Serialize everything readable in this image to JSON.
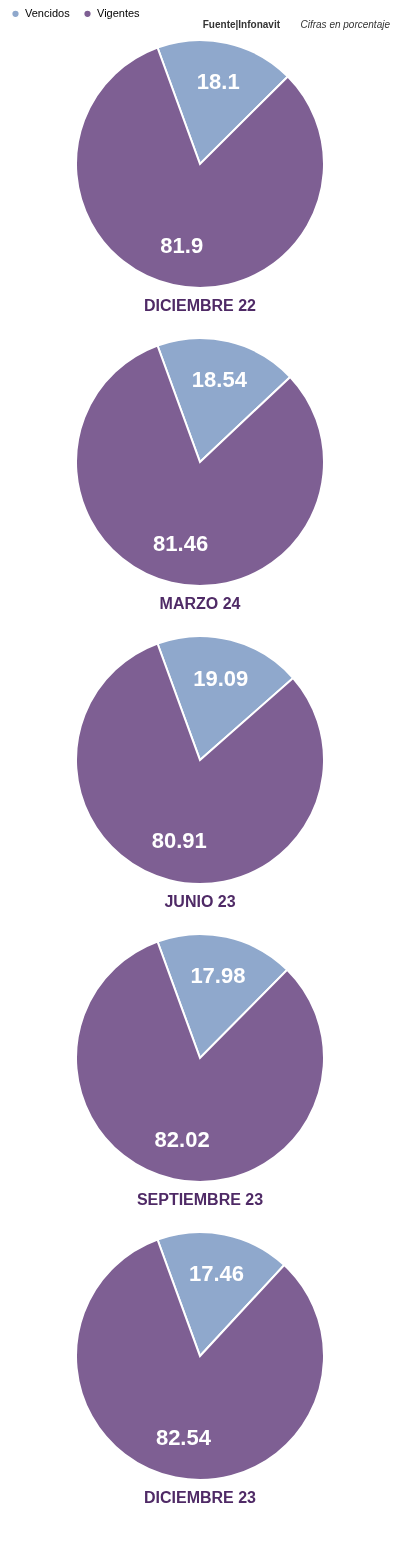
{
  "chart_data": [
    {
      "type": "pie",
      "title": "DICIEMBRE 22",
      "categories": [
        "Vencidos",
        "Vigentes"
      ],
      "values": [
        18.1,
        81.9
      ],
      "colors": [
        "#8fa8cc",
        "#7e5f93"
      ],
      "data_labels": true,
      "legend": "top left",
      "annotations": [
        "Fuente|Infonavit",
        "Cifras en porcentaje"
      ]
    },
    {
      "type": "pie",
      "title": "MARZO 24",
      "categories": [
        null,
        null
      ],
      "values": [
        18.54,
        81.46
      ],
      "colors": [
        "#8fa8cc",
        "#7e5f93"
      ],
      "data_labels": true
    },
    {
      "type": "pie",
      "title": "JUNIO 23",
      "categories": [
        null,
        null
      ],
      "values": [
        19.09,
        80.91
      ],
      "colors": [
        "#8fa8cc",
        "#7e5f93"
      ],
      "data_labels": true
    },
    {
      "type": "pie",
      "title": "SEPTIEMBRE 23",
      "categories": [
        null,
        null
      ],
      "values": [
        17.98,
        82.02
      ],
      "colors": [
        "#8fa8cc",
        "#7e5f93"
      ],
      "data_labels": true
    },
    {
      "type": "pie",
      "title": "DICIEMBRE 23",
      "categories": [
        null,
        null
      ],
      "values": [
        17.46,
        82.54
      ],
      "colors": [
        "#8fa8cc",
        "#7e5f93"
      ],
      "data_labels": true
    }
  ]
}
